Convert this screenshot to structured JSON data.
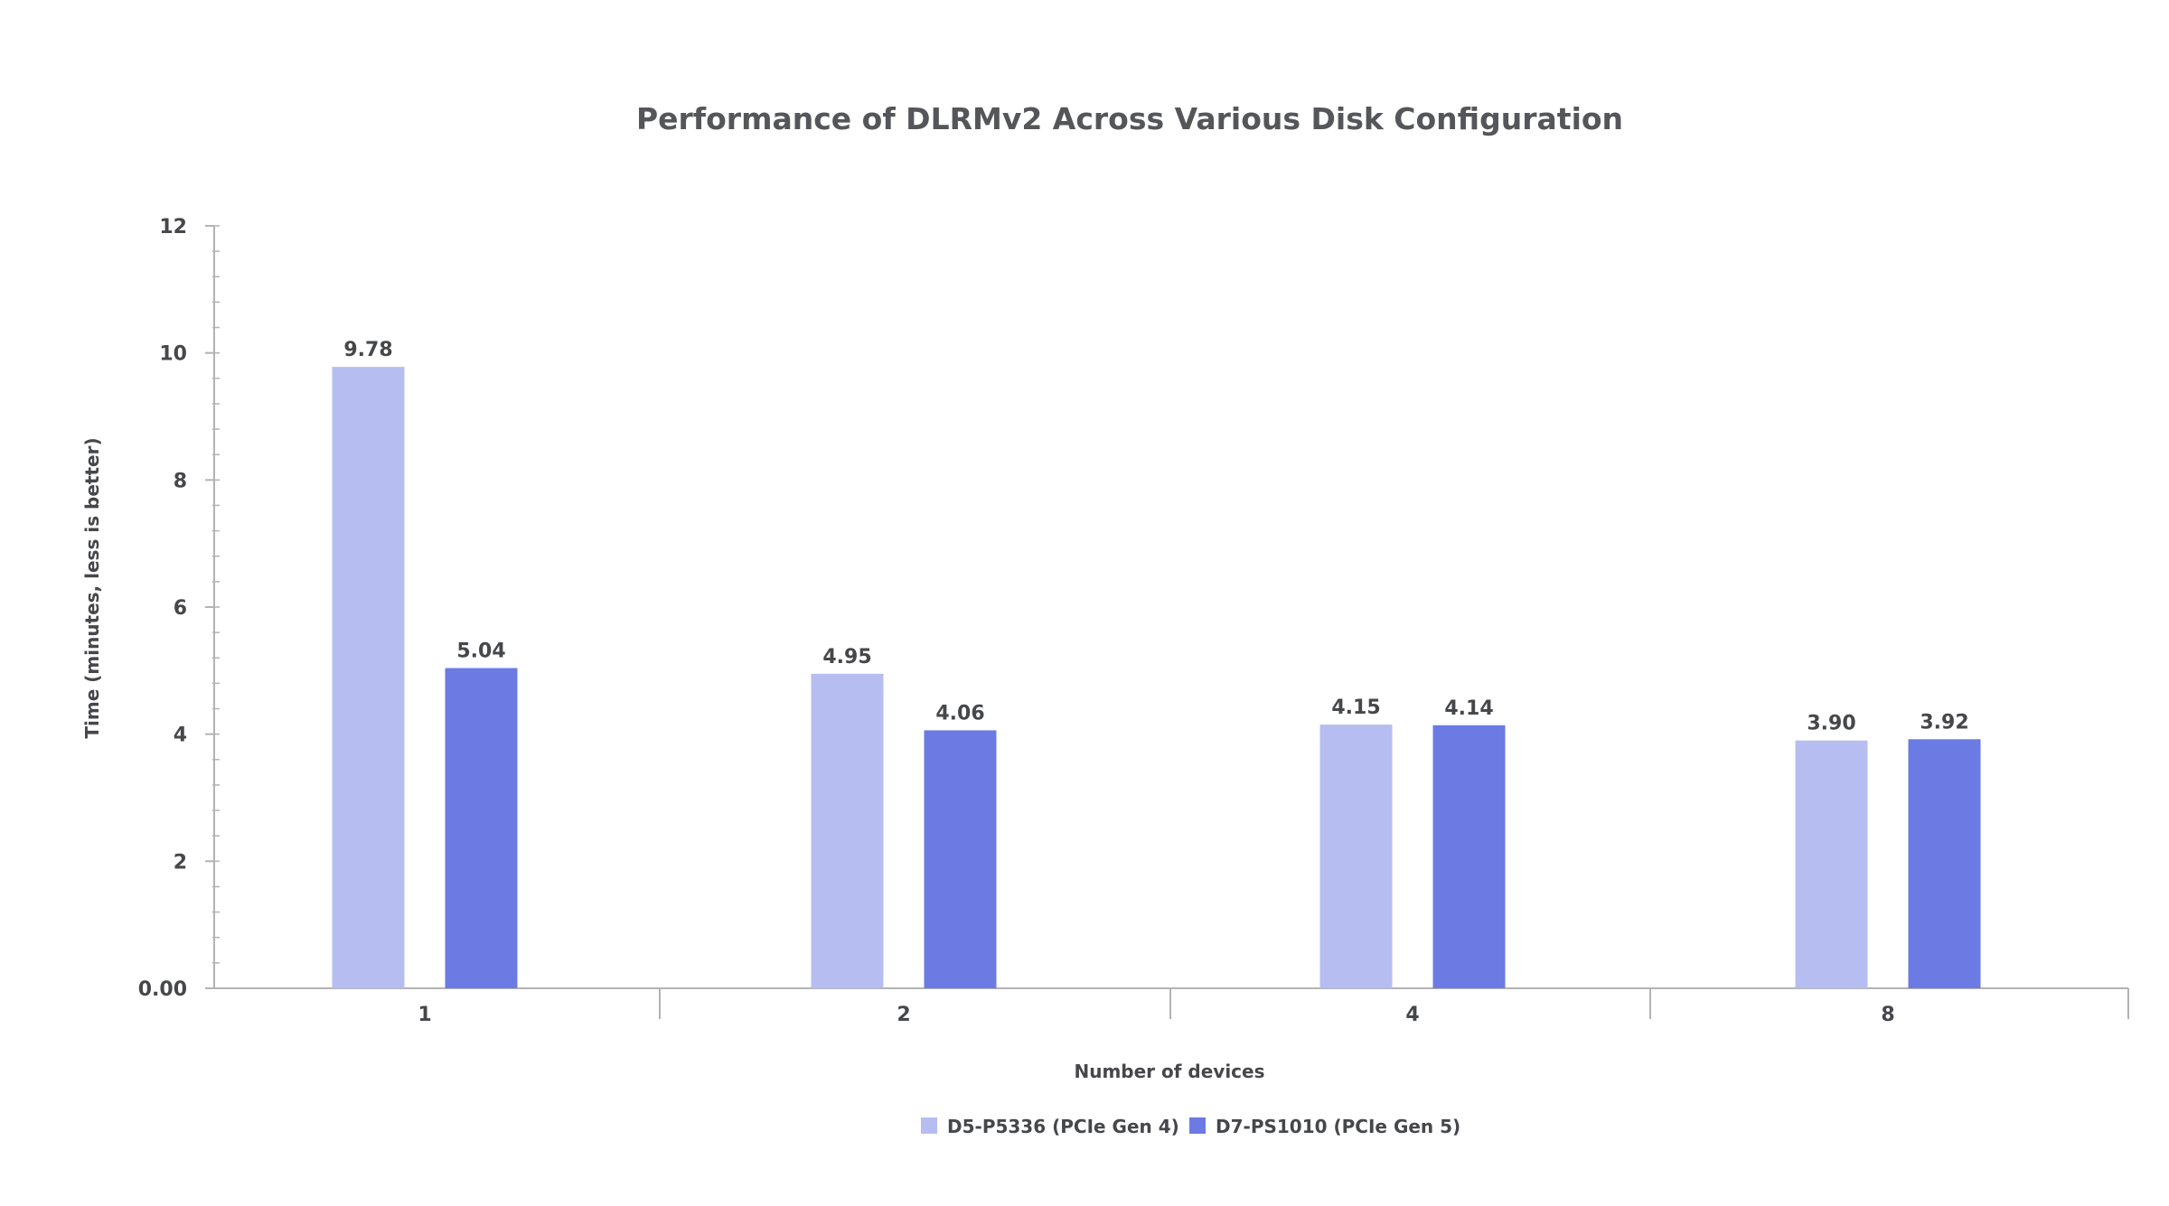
{
  "chart_data": {
    "type": "bar",
    "title": "Performance of DLRMv2 Across Various Disk Configuration",
    "xlabel": "Number of devices",
    "ylabel": "Time (minutes, less is better)",
    "categories": [
      "1",
      "2",
      "4",
      "8"
    ],
    "series": [
      {
        "name": "D5-P5336 (PCIe Gen 4)",
        "color": "#b6bdf0",
        "values": [
          9.78,
          4.95,
          4.15,
          3.9
        ],
        "labels": [
          "9.78",
          "4.95",
          "4.15",
          "3.90"
        ]
      },
      {
        "name": "D7-PS1010 (PCIe Gen 5)",
        "color": "#6b7be3",
        "values": [
          5.04,
          4.06,
          4.14,
          3.92
        ],
        "labels": [
          "5.04",
          "4.06",
          "4.14",
          "3.92"
        ]
      }
    ],
    "yticks": [
      {
        "value": 0,
        "label": "0.00"
      },
      {
        "value": 2,
        "label": "2"
      },
      {
        "value": 4,
        "label": "4"
      },
      {
        "value": 6,
        "label": "6"
      },
      {
        "value": 8,
        "label": "8"
      },
      {
        "value": 10,
        "label": "10"
      },
      {
        "value": 12,
        "label": "12"
      }
    ],
    "ylim": [
      0,
      12
    ],
    "grid": false,
    "legend_position": "bottom-center",
    "axis_color": "#b3b3b3"
  }
}
